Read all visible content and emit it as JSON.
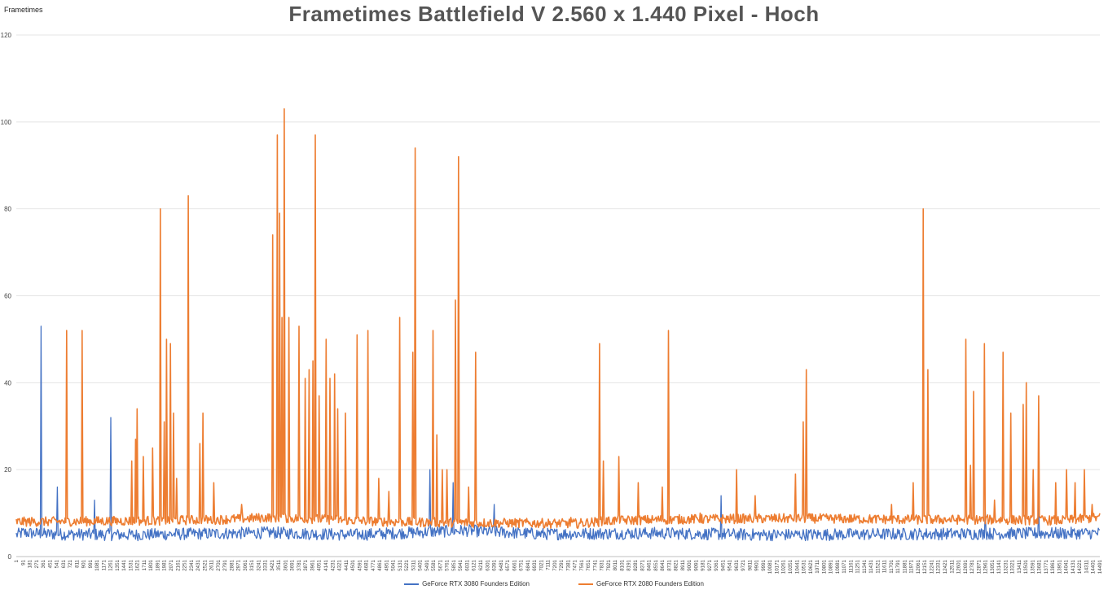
{
  "chart_data": {
    "type": "line",
    "title": "Frametimes Battlefield V 2.560 x 1.440 Pixel - Hoch",
    "ylabel": "Frametimes",
    "xlabel": "",
    "ylim": [
      0,
      120
    ],
    "yticks": [
      0,
      20,
      40,
      60,
      80,
      100,
      120
    ],
    "xlim": [
      1,
      14491
    ],
    "xtick_start": 1,
    "xtick_step": 90,
    "grid": "horizontal",
    "legend_position": "bottom",
    "series": [
      {
        "name": "GeForce RTX 3080 Founders Edition",
        "color": "#4472C4",
        "base": 5.3,
        "noise": 1.4,
        "points": [
          [
            1,
            5.0
          ],
          [
            91,
            5.5
          ],
          [
            361,
            5.2
          ],
          [
            1500,
            5.0
          ],
          [
            3400,
            5.5
          ],
          [
            4500,
            5.0
          ],
          [
            6000,
            6.0
          ],
          [
            7000,
            5.2
          ],
          [
            8500,
            5.4
          ],
          [
            10000,
            5.0
          ],
          [
            12000,
            5.2
          ],
          [
            14491,
            5.4
          ]
        ],
        "spikes": [
          [
            330,
            53
          ],
          [
            550,
            16
          ],
          [
            1050,
            13
          ],
          [
            1260,
            32
          ],
          [
            5530,
            20
          ],
          [
            5840,
            17
          ],
          [
            6390,
            12
          ],
          [
            9430,
            14
          ],
          [
            12960,
            11
          ],
          [
            13670,
            13
          ]
        ]
      },
      {
        "name": "GeForce RTX 2080 Founders Edition",
        "color": "#ED7D31",
        "base": 7.8,
        "noise": 1.1,
        "points": [
          [
            1,
            8.0
          ],
          [
            1500,
            8.2
          ],
          [
            2700,
            8.5
          ],
          [
            3400,
            9.0
          ],
          [
            4200,
            8.5
          ],
          [
            5000,
            8.0
          ],
          [
            6000,
            7.8
          ],
          [
            7500,
            7.6
          ],
          [
            8000,
            8.3
          ],
          [
            9000,
            8.6
          ],
          [
            10500,
            8.8
          ],
          [
            12000,
            8.5
          ],
          [
            13000,
            8.5
          ],
          [
            14000,
            8.3
          ],
          [
            14491,
            9.0
          ]
        ],
        "spikes": [
          [
            670,
            52
          ],
          [
            880,
            52
          ],
          [
            1540,
            22
          ],
          [
            1600,
            27
          ],
          [
            1620,
            34
          ],
          [
            1700,
            23
          ],
          [
            1820,
            25
          ],
          [
            1930,
            80
          ],
          [
            1980,
            31
          ],
          [
            2010,
            50
          ],
          [
            2060,
            49
          ],
          [
            2100,
            33
          ],
          [
            2150,
            18
          ],
          [
            2300,
            83
          ],
          [
            2460,
            26
          ],
          [
            2500,
            33
          ],
          [
            2640,
            17
          ],
          [
            3010,
            12
          ],
          [
            3430,
            74
          ],
          [
            3490,
            97
          ],
          [
            3520,
            79
          ],
          [
            3550,
            55
          ],
          [
            3580,
            103
          ],
          [
            3650,
            55
          ],
          [
            3780,
            53
          ],
          [
            3860,
            41
          ],
          [
            3920,
            43
          ],
          [
            3970,
            45
          ],
          [
            4000,
            97
          ],
          [
            4050,
            37
          ],
          [
            4140,
            50
          ],
          [
            4200,
            41
          ],
          [
            4260,
            42
          ],
          [
            4300,
            34
          ],
          [
            4400,
            33
          ],
          [
            4560,
            51
          ],
          [
            4700,
            52
          ],
          [
            4850,
            18
          ],
          [
            4980,
            15
          ],
          [
            5130,
            55
          ],
          [
            5300,
            47
          ],
          [
            5330,
            94
          ],
          [
            5570,
            52
          ],
          [
            5620,
            28
          ],
          [
            5700,
            20
          ],
          [
            5760,
            20
          ],
          [
            5870,
            59
          ],
          [
            5920,
            92
          ],
          [
            6050,
            16
          ],
          [
            6140,
            47
          ],
          [
            7010,
            8
          ],
          [
            7420,
            9
          ],
          [
            7800,
            49
          ],
          [
            7850,
            22
          ],
          [
            8060,
            23
          ],
          [
            8320,
            17
          ],
          [
            8640,
            16
          ],
          [
            8720,
            52
          ],
          [
            9150,
            10
          ],
          [
            9630,
            20
          ],
          [
            9880,
            14
          ],
          [
            10420,
            19
          ],
          [
            10520,
            31
          ],
          [
            10570,
            43
          ],
          [
            11040,
            9
          ],
          [
            11710,
            12
          ],
          [
            11990,
            17
          ],
          [
            12130,
            80
          ],
          [
            12190,
            43
          ],
          [
            12700,
            50
          ],
          [
            12760,
            21
          ],
          [
            12800,
            38
          ],
          [
            12950,
            49
          ],
          [
            13080,
            13
          ],
          [
            13200,
            47
          ],
          [
            13300,
            33
          ],
          [
            13470,
            35
          ],
          [
            13510,
            40
          ],
          [
            13600,
            20
          ],
          [
            13670,
            37
          ],
          [
            13900,
            17
          ],
          [
            14050,
            20
          ],
          [
            14160,
            17
          ],
          [
            14280,
            20
          ],
          [
            14390,
            12
          ]
        ]
      }
    ]
  }
}
